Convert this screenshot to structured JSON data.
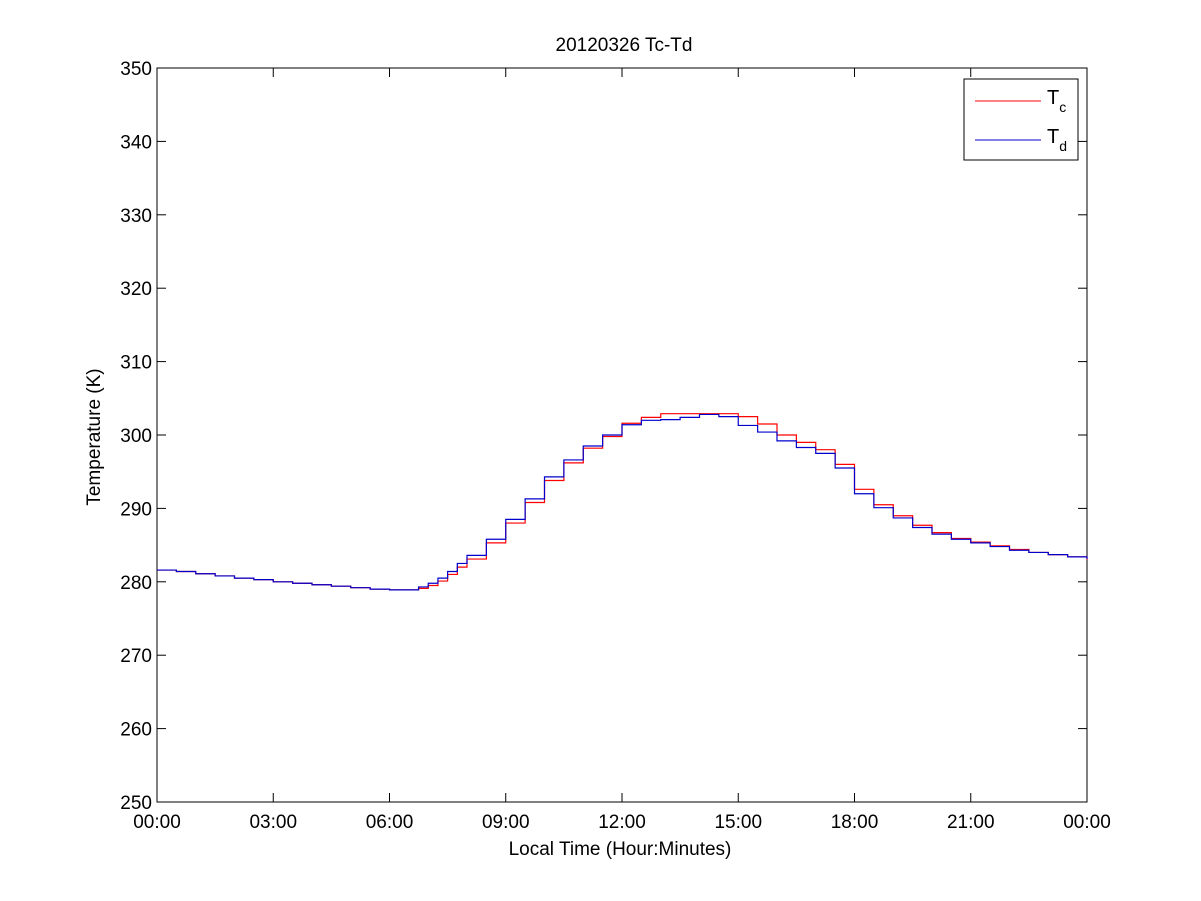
{
  "chart_data": {
    "type": "line",
    "title": "20120326 Tc-Td",
    "xlabel": "Local Time (Hour:Minutes)",
    "ylabel": "Temperature (K)",
    "xlim": [
      0,
      24
    ],
    "ylim": [
      250,
      350
    ],
    "x_ticks": [
      0,
      3,
      6,
      9,
      12,
      15,
      18,
      21,
      24
    ],
    "x_tick_labels": [
      "00:00",
      "03:00",
      "06:00",
      "09:00",
      "12:00",
      "15:00",
      "18:00",
      "21:00",
      "00:00"
    ],
    "y_ticks": [
      250,
      260,
      270,
      280,
      290,
      300,
      310,
      320,
      330,
      340,
      350
    ],
    "y_tick_labels": [
      "250",
      "260",
      "270",
      "280",
      "290",
      "300",
      "310",
      "320",
      "330",
      "340",
      "350"
    ],
    "grid": false,
    "legend": {
      "position": "top-right",
      "entries": [
        {
          "base": "T",
          "sub": "c"
        },
        {
          "base": "T",
          "sub": "d"
        }
      ]
    },
    "series": [
      {
        "name": "Tc",
        "color": "#ff0000",
        "x": [
          0,
          0.5,
          1,
          1.5,
          2,
          2.5,
          3,
          3.5,
          4,
          4.5,
          5,
          5.5,
          6,
          6.5,
          6.75,
          7,
          7.25,
          7.5,
          7.75,
          8,
          8.5,
          9,
          9.5,
          10,
          10.5,
          11,
          11.5,
          12,
          12.5,
          13,
          13.5,
          14,
          14.5,
          15,
          15.5,
          16,
          16.5,
          17,
          17.5,
          18,
          18.5,
          19,
          19.5,
          20,
          20.5,
          21,
          21.5,
          22,
          22.5,
          23,
          23.5,
          24
        ],
        "y": [
          281.6,
          281.4,
          281.1,
          280.8,
          280.5,
          280.3,
          280.0,
          279.8,
          279.6,
          279.4,
          279.2,
          279.0,
          278.9,
          278.9,
          279.1,
          279.5,
          280.1,
          281.0,
          282.0,
          283.1,
          285.3,
          288.0,
          290.8,
          293.8,
          296.2,
          298.2,
          299.8,
          301.6,
          302.4,
          302.9,
          302.9,
          302.9,
          302.9,
          302.5,
          301.5,
          300.0,
          299.0,
          298.0,
          296.0,
          292.6,
          290.5,
          289.0,
          287.7,
          286.7,
          285.9,
          285.4,
          284.9,
          284.4,
          284.0,
          283.7,
          283.4,
          283.0
        ]
      },
      {
        "name": "Td",
        "color": "#0000cc",
        "x": [
          0,
          0.5,
          1,
          1.5,
          2,
          2.5,
          3,
          3.5,
          4,
          4.5,
          5,
          5.5,
          6,
          6.5,
          6.75,
          7,
          7.25,
          7.5,
          7.75,
          8,
          8.5,
          9,
          9.5,
          10,
          10.5,
          11,
          11.5,
          12,
          12.5,
          13,
          13.5,
          14,
          14.5,
          15,
          15.5,
          16,
          16.5,
          17,
          17.5,
          18,
          18.5,
          19,
          19.5,
          20,
          20.5,
          21,
          21.5,
          22,
          22.5,
          23,
          23.5,
          24
        ],
        "y": [
          281.6,
          281.4,
          281.1,
          280.8,
          280.5,
          280.3,
          280.0,
          279.8,
          279.6,
          279.4,
          279.2,
          279.0,
          278.9,
          278.9,
          279.3,
          279.8,
          280.5,
          281.4,
          282.5,
          283.6,
          285.8,
          288.5,
          291.3,
          294.3,
          296.6,
          298.5,
          300.0,
          301.4,
          302.0,
          302.1,
          302.4,
          302.8,
          302.5,
          301.3,
          300.4,
          299.2,
          298.3,
          297.5,
          295.5,
          292.0,
          290.1,
          288.7,
          287.4,
          286.5,
          285.8,
          285.3,
          284.8,
          284.3,
          284.0,
          283.7,
          283.4,
          283.1
        ]
      }
    ]
  }
}
